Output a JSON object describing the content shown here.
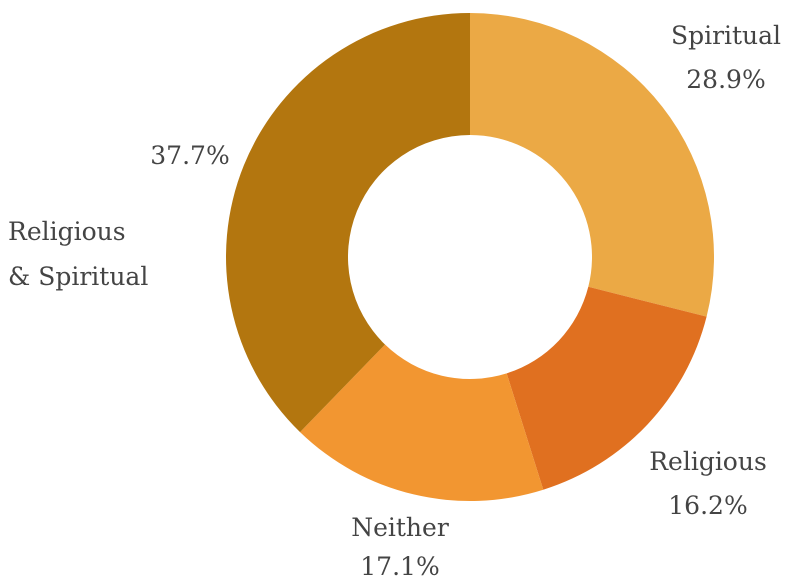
{
  "chart_data": {
    "type": "pie",
    "variant": "donut",
    "title": "",
    "slices": [
      {
        "label": "Spiritual",
        "value": 28.9,
        "display": "28.9%",
        "color": "#EBA945"
      },
      {
        "label": "Religious",
        "value": 16.2,
        "display": "16.2%",
        "color": "#E07020"
      },
      {
        "label": "Neither",
        "value": 17.1,
        "display": "17.1%",
        "color": "#F29631"
      },
      {
        "label": "Religious & Spiritual",
        "label_lines": [
          "Religious",
          "& Spiritual"
        ],
        "value": 37.7,
        "display": "37.7%",
        "color": "#B3760F"
      }
    ],
    "start_angle": "12 o'clock",
    "direction": "clockwise",
    "legend": "none",
    "label_placement": "outside"
  }
}
